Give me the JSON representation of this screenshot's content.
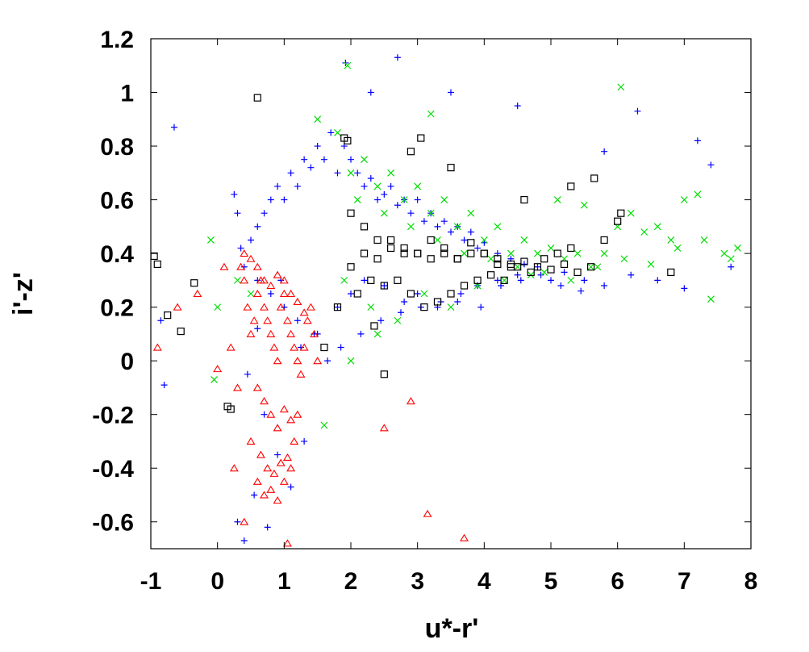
{
  "chart_data": {
    "type": "scatter",
    "title": "",
    "xlabel": "u*-r'",
    "ylabel": "i'-z'",
    "xlim": [
      -1,
      8
    ],
    "ylim": [
      -0.7,
      1.2
    ],
    "xticks": [
      "-1",
      "0",
      "1",
      "2",
      "3",
      "4",
      "5",
      "6",
      "7",
      "8"
    ],
    "yticks": [
      "-0.6",
      "-0.4",
      "-0.2",
      "0",
      "0.2",
      "0.4",
      "0.6",
      "0.8",
      "1",
      "1.2"
    ],
    "grid": false,
    "legend": "none",
    "series": [
      {
        "marker": "plus",
        "color": "#0000ff",
        "x": [
          -0.65,
          -0.85,
          -0.8,
          0.25,
          0.3,
          0.35,
          0.4,
          0.5,
          0.6,
          0.7,
          0.8,
          0.9,
          1.0,
          1.1,
          1.2,
          1.3,
          1.4,
          1.5,
          1.6,
          1.7,
          1.8,
          1.9,
          2.0,
          2.1,
          2.2,
          2.3,
          2.4,
          2.5,
          2.6,
          2.7,
          2.8,
          2.9,
          3.0,
          3.1,
          3.2,
          3.3,
          3.4,
          3.5,
          3.6,
          3.7,
          3.8,
          3.9,
          4.0,
          4.2,
          4.4,
          4.6,
          4.8,
          5.0,
          5.2,
          5.5,
          5.8,
          6.2,
          6.6,
          7.0,
          7.2,
          7.4,
          7.7,
          0.6,
          0.8,
          1.0,
          1.2,
          1.5,
          1.8,
          2.0,
          2.2,
          2.5,
          2.8,
          3.0,
          3.3,
          3.6,
          3.9,
          4.2,
          4.5,
          0.45,
          0.7,
          0.9,
          1.1,
          1.3,
          0.55,
          0.75,
          1.25,
          1.45,
          1.65,
          1.85,
          2.15,
          2.45,
          2.75,
          3.05,
          3.35,
          3.65,
          3.95,
          4.25,
          4.55,
          4.85,
          5.15,
          5.45,
          1.92,
          2.7,
          2.3,
          3.5,
          4.5,
          5.8,
          6.3,
          0.3,
          0.4,
          0.6,
          0.95
        ],
        "y": [
          0.87,
          0.15,
          -0.09,
          0.62,
          0.55,
          0.42,
          0.35,
          0.45,
          0.5,
          0.55,
          0.6,
          0.65,
          0.6,
          0.7,
          0.65,
          0.75,
          0.72,
          0.8,
          0.75,
          0.85,
          0.7,
          0.8,
          0.75,
          0.7,
          0.65,
          0.68,
          0.6,
          0.62,
          0.65,
          0.58,
          0.6,
          0.55,
          0.6,
          0.52,
          0.55,
          0.5,
          0.52,
          0.48,
          0.5,
          0.45,
          0.48,
          0.42,
          0.44,
          0.4,
          0.38,
          0.36,
          0.35,
          0.3,
          0.33,
          0.3,
          0.28,
          0.32,
          0.3,
          0.27,
          0.82,
          0.73,
          0.35,
          0.3,
          0.25,
          0.2,
          0.15,
          0.1,
          0.2,
          0.25,
          0.3,
          0.28,
          0.22,
          0.25,
          0.2,
          0.22,
          0.28,
          0.3,
          0.32,
          -0.05,
          -0.2,
          -0.35,
          -0.47,
          -0.3,
          -0.5,
          -0.62,
          0.05,
          0.1,
          0.0,
          0.05,
          0.1,
          0.15,
          0.18,
          0.2,
          0.22,
          0.25,
          0.2,
          0.28,
          0.3,
          0.32,
          0.28,
          0.26,
          1.11,
          1.13,
          1.0,
          1.0,
          0.95,
          0.78,
          0.93,
          -0.6,
          -0.67,
          0.12,
          0.3
        ]
      },
      {
        "marker": "cross",
        "color": "#00dd00",
        "x": [
          -0.1,
          -0.05,
          0.0,
          0.3,
          0.5,
          1.5,
          1.8,
          2.0,
          2.2,
          2.4,
          2.6,
          2.8,
          3.0,
          3.2,
          3.4,
          3.6,
          3.8,
          4.0,
          4.2,
          4.4,
          4.6,
          4.8,
          5.0,
          5.2,
          5.4,
          5.6,
          5.8,
          6.0,
          6.2,
          6.4,
          6.6,
          6.8,
          7.0,
          7.2,
          7.4,
          7.6,
          7.8,
          2.1,
          2.5,
          2.9,
          3.3,
          3.7,
          4.1,
          4.5,
          4.9,
          5.3,
          5.7,
          6.1,
          6.5,
          6.9,
          7.3,
          7.7,
          1.9,
          2.3,
          2.7,
          3.1,
          3.5,
          3.9,
          4.3,
          4.7,
          5.1,
          5.5,
          1.95,
          3.2,
          6.05,
          1.6,
          2.0,
          2.4
        ],
        "y": [
          0.45,
          -0.07,
          0.2,
          0.3,
          0.25,
          0.9,
          0.85,
          0.7,
          0.75,
          0.65,
          0.7,
          0.6,
          0.65,
          0.55,
          0.6,
          0.5,
          0.55,
          0.45,
          0.5,
          0.4,
          0.45,
          0.4,
          0.42,
          0.38,
          0.4,
          0.35,
          0.4,
          0.5,
          0.55,
          0.48,
          0.5,
          0.45,
          0.6,
          0.62,
          0.23,
          0.4,
          0.42,
          0.6,
          0.55,
          0.5,
          0.45,
          0.4,
          0.38,
          0.35,
          0.33,
          0.3,
          0.35,
          0.38,
          0.36,
          0.42,
          0.45,
          0.38,
          0.3,
          0.2,
          0.15,
          0.25,
          0.2,
          0.28,
          0.3,
          0.32,
          0.6,
          0.58,
          1.1,
          0.92,
          1.02,
          -0.24,
          0.0,
          0.1
        ]
      },
      {
        "marker": "square",
        "color": "#000000",
        "x": [
          -0.95,
          -0.9,
          -0.75,
          -0.55,
          -0.35,
          0.15,
          0.2,
          0.6,
          2.5,
          1.9,
          2.0,
          2.2,
          2.4,
          2.6,
          2.8,
          3.0,
          3.2,
          3.4,
          3.6,
          3.8,
          4.0,
          4.2,
          4.4,
          4.6,
          4.8,
          5.0,
          5.2,
          5.4,
          5.6,
          5.8,
          6.0,
          6.8,
          1.6,
          1.8,
          2.1,
          2.3,
          2.5,
          2.7,
          2.9,
          3.1,
          3.3,
          3.5,
          3.7,
          3.9,
          4.1,
          4.3,
          4.5,
          4.7,
          4.9,
          5.1,
          5.3,
          2.0,
          2.2,
          2.4,
          2.6,
          2.8,
          3.0,
          3.2,
          3.4,
          3.6,
          3.8,
          4.0,
          4.2,
          4.4,
          1.95,
          2.9,
          3.5,
          4.6,
          5.3,
          5.65,
          3.05,
          6.05,
          2.35
        ],
        "y": [
          0.39,
          0.36,
          0.17,
          0.11,
          0.29,
          -0.17,
          -0.18,
          0.98,
          -0.05,
          0.83,
          0.55,
          0.5,
          0.45,
          0.42,
          0.4,
          0.4,
          0.38,
          0.4,
          0.38,
          0.4,
          0.4,
          0.38,
          0.36,
          0.37,
          0.35,
          0.34,
          0.36,
          0.33,
          0.35,
          0.45,
          0.52,
          0.33,
          0.05,
          0.2,
          0.25,
          0.3,
          0.28,
          0.3,
          0.25,
          0.2,
          0.22,
          0.25,
          0.28,
          0.3,
          0.32,
          0.3,
          0.35,
          0.33,
          0.38,
          0.4,
          0.42,
          0.35,
          0.4,
          0.38,
          0.45,
          0.42,
          0.4,
          0.45,
          0.42,
          0.38,
          0.44,
          0.4,
          0.36,
          0.35,
          0.82,
          0.78,
          0.72,
          0.6,
          0.65,
          0.68,
          0.83,
          0.55,
          0.13
        ]
      },
      {
        "marker": "triangle",
        "color": "#ff0000",
        "x": [
          -0.9,
          -0.6,
          -0.3,
          0.0,
          0.1,
          0.2,
          0.3,
          0.35,
          0.4,
          0.45,
          0.5,
          0.55,
          0.6,
          0.65,
          0.7,
          0.75,
          0.8,
          0.85,
          0.9,
          0.95,
          1.0,
          1.05,
          1.1,
          1.15,
          1.2,
          1.25,
          1.3,
          1.35,
          1.4,
          1.45,
          1.5,
          0.6,
          0.7,
          0.8,
          0.9,
          1.0,
          1.1,
          1.2,
          0.5,
          0.65,
          0.75,
          0.85,
          0.95,
          1.05,
          1.15,
          0.6,
          0.7,
          0.8,
          0.9,
          1.0,
          1.1,
          0.4,
          0.5,
          0.6,
          0.7,
          0.8,
          0.9,
          1.0,
          1.1,
          1.2,
          1.3,
          2.5,
          2.9,
          3.15,
          3.7,
          0.25,
          0.4,
          1.05
        ],
        "y": [
          0.05,
          0.2,
          0.25,
          -0.03,
          0.35,
          0.05,
          -0.1,
          0.35,
          0.3,
          0.2,
          0.1,
          0.15,
          0.25,
          0.3,
          0.2,
          0.15,
          0.1,
          0.05,
          0.0,
          0.2,
          0.25,
          0.15,
          0.1,
          0.05,
          0.0,
          -0.05,
          0.05,
          0.15,
          0.2,
          0.1,
          0.0,
          -0.1,
          -0.15,
          -0.2,
          -0.25,
          -0.18,
          -0.22,
          -0.2,
          -0.3,
          -0.35,
          -0.4,
          -0.42,
          -0.38,
          -0.36,
          -0.3,
          -0.45,
          -0.5,
          -0.48,
          -0.52,
          -0.45,
          -0.4,
          0.4,
          0.38,
          0.35,
          0.3,
          0.28,
          0.32,
          0.3,
          0.25,
          0.22,
          0.18,
          -0.25,
          -0.15,
          -0.57,
          -0.66,
          -0.4,
          -0.6,
          -0.68
        ]
      }
    ]
  }
}
